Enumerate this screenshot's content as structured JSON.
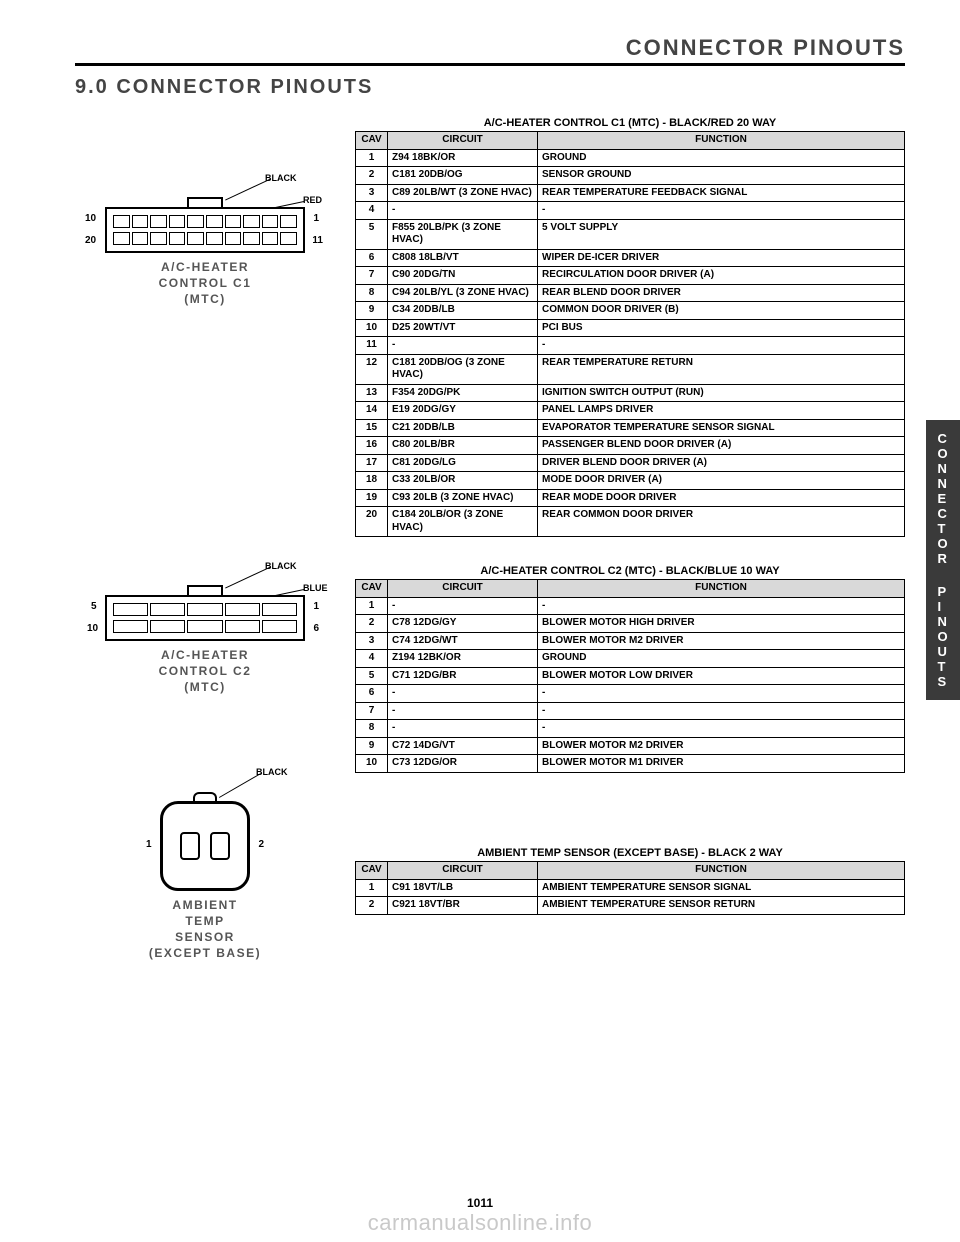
{
  "header": {
    "breadcrumb": "CONNECTOR PINOUTS",
    "section_title": "9.0   CONNECTOR PINOUTS"
  },
  "side_tab": {
    "line1": "CONNECTOR",
    "line2": "PINOUTS"
  },
  "page_number": "1011",
  "watermark": "carmanualsonline.info",
  "figures": {
    "c1": {
      "caption_l1": "A/C-HEATER",
      "caption_l2": "CONTROL C1",
      "caption_l3": "(MTC)",
      "color1": "BLACK",
      "color2": "RED",
      "pin_tl": "10",
      "pin_bl": "20",
      "pin_tr": "1",
      "pin_br": "11"
    },
    "c2": {
      "caption_l1": "A/C-HEATER",
      "caption_l2": "CONTROL C2",
      "caption_l3": "(MTC)",
      "color1": "BLACK",
      "color2": "BLUE",
      "pin_tl": "5",
      "pin_bl": "10",
      "pin_tr": "1",
      "pin_br": "6"
    },
    "amb": {
      "caption_l1": "AMBIENT",
      "caption_l2": "TEMP",
      "caption_l3": "SENSOR",
      "caption_l4": "(EXCEPT BASE)",
      "color1": "BLACK",
      "pin_l": "1",
      "pin_r": "2"
    }
  },
  "tables": {
    "t1": {
      "title": "A/C-HEATER CONTROL C1 (MTC) - BLACK/RED 20 WAY",
      "columns": [
        "CAV",
        "CIRCUIT",
        "FUNCTION"
      ],
      "rows": [
        [
          "1",
          "Z94 18BK/OR",
          "GROUND"
        ],
        [
          "2",
          "C181 20DB/OG",
          "SENSOR GROUND"
        ],
        [
          "3",
          "C89 20LB/WT (3 ZONE HVAC)",
          "REAR TEMPERATURE FEEDBACK SIGNAL"
        ],
        [
          "4",
          "-",
          "-"
        ],
        [
          "5",
          "F855 20LB/PK (3 ZONE HVAC)",
          "5 VOLT SUPPLY"
        ],
        [
          "6",
          "C808 18LB/VT",
          "WIPER DE-ICER DRIVER"
        ],
        [
          "7",
          "C90 20DG/TN",
          "RECIRCULATION DOOR DRIVER (A)"
        ],
        [
          "8",
          "C94 20LB/YL (3 ZONE HVAC)",
          "REAR BLEND DOOR DRIVER"
        ],
        [
          "9",
          "C34 20DB/LB",
          "COMMON DOOR DRIVER (B)"
        ],
        [
          "10",
          "D25 20WT/VT",
          "PCI BUS"
        ],
        [
          "11",
          "-",
          "-"
        ],
        [
          "12",
          "C181 20DB/OG (3 ZONE HVAC)",
          "REAR TEMPERATURE RETURN"
        ],
        [
          "13",
          "F354 20DG/PK",
          "IGNITION SWITCH OUTPUT (RUN)"
        ],
        [
          "14",
          "E19 20DG/GY",
          "PANEL LAMPS DRIVER"
        ],
        [
          "15",
          "C21 20DB/LB",
          "EVAPORATOR TEMPERATURE SENSOR SIGNAL"
        ],
        [
          "16",
          "C80 20LB/BR",
          "PASSENGER BLEND DOOR DRIVER (A)"
        ],
        [
          "17",
          "C81 20DG/LG",
          "DRIVER BLEND DOOR DRIVER (A)"
        ],
        [
          "18",
          "C33 20LB/OR",
          "MODE DOOR DRIVER (A)"
        ],
        [
          "19",
          "C93 20LB (3 ZONE HVAC)",
          "REAR MODE DOOR DRIVER"
        ],
        [
          "20",
          "C184 20LB/OR (3 ZONE HVAC)",
          "REAR COMMON DOOR DRIVER"
        ]
      ]
    },
    "t2": {
      "title": "A/C-HEATER CONTROL C2 (MTC) - BLACK/BLUE 10 WAY",
      "columns": [
        "CAV",
        "CIRCUIT",
        "FUNCTION"
      ],
      "rows": [
        [
          "1",
          "-",
          "-"
        ],
        [
          "2",
          "C78 12DG/GY",
          "BLOWER MOTOR HIGH DRIVER"
        ],
        [
          "3",
          "C74 12DG/WT",
          "BLOWER MOTOR M2 DRIVER"
        ],
        [
          "4",
          "Z194 12BK/OR",
          "GROUND"
        ],
        [
          "5",
          "C71 12DG/BR",
          "BLOWER MOTOR LOW DRIVER"
        ],
        [
          "6",
          "-",
          "-"
        ],
        [
          "7",
          "-",
          "-"
        ],
        [
          "8",
          "-",
          "-"
        ],
        [
          "9",
          "C72 14DG/VT",
          "BLOWER MOTOR M2 DRIVER"
        ],
        [
          "10",
          "C73 12DG/OR",
          "BLOWER MOTOR M1 DRIVER"
        ]
      ]
    },
    "t3": {
      "title": "AMBIENT TEMP SENSOR (EXCEPT BASE) - BLACK 2 WAY",
      "columns": [
        "CAV",
        "CIRCUIT",
        "FUNCTION"
      ],
      "rows": [
        [
          "1",
          "C91 18VT/LB",
          "AMBIENT TEMPERATURE SENSOR SIGNAL"
        ],
        [
          "2",
          "C921 18VT/BR",
          "AMBIENT TEMPERATURE SENSOR RETURN"
        ]
      ]
    }
  }
}
